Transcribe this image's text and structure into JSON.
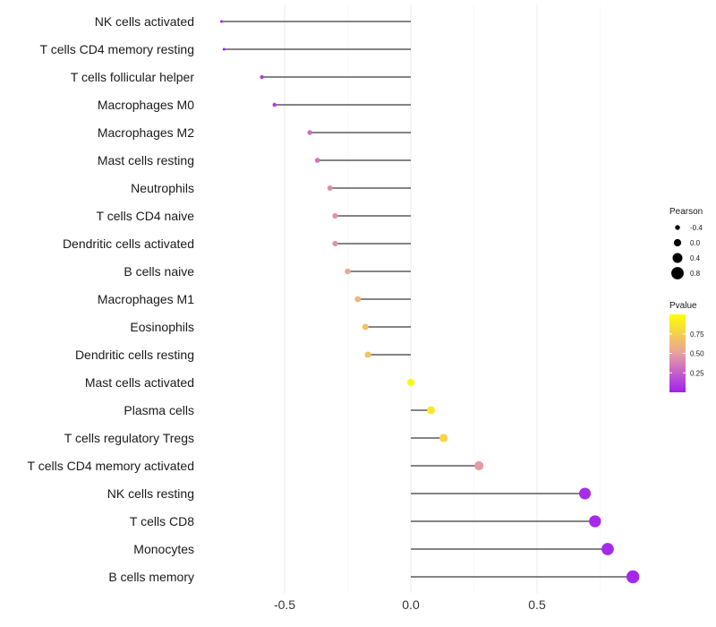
{
  "chart_data": {
    "type": "lollipop",
    "title": "",
    "xlabel": "",
    "ylabel": "",
    "xlim": [
      -0.75,
      0.88
    ],
    "xticks": [
      -0.5,
      0.0,
      0.5
    ],
    "xtick_labels": [
      "-0.5",
      "0.0",
      "0.5"
    ],
    "categories": [
      "NK cells activated",
      "T cells CD4 memory resting",
      "T cells follicular helper",
      "Macrophages M0",
      "Macrophages M2",
      "Mast cells resting",
      "Neutrophils",
      "T cells CD4 naive",
      "Dendritic cells activated",
      "B cells naive",
      "Macrophages M1",
      "Eosinophils",
      "Dendritic cells resting",
      "Mast cells activated",
      "Plasma cells",
      "T cells regulatory  Tregs ",
      "T cells CD4 memory activated",
      "NK cells resting",
      "T cells CD8",
      "Monocytes",
      "B cells memory"
    ],
    "pearson": [
      -0.75,
      -0.74,
      -0.59,
      -0.54,
      -0.4,
      -0.37,
      -0.32,
      -0.3,
      -0.3,
      -0.25,
      -0.21,
      -0.18,
      -0.17,
      0.0,
      0.08,
      0.13,
      0.27,
      0.69,
      0.73,
      0.78,
      0.88
    ],
    "pvalue": [
      0.02,
      0.02,
      0.08,
      0.12,
      0.3,
      0.33,
      0.42,
      0.45,
      0.45,
      0.55,
      0.62,
      0.68,
      0.7,
      0.97,
      0.88,
      0.78,
      0.48,
      0.05,
      0.04,
      0.04,
      0.03
    ],
    "legend_size": {
      "title": "Pearson",
      "values": [
        -0.4,
        0.0,
        0.4,
        0.8
      ],
      "labels": [
        "-0.4",
        "0.0",
        "0.4",
        "0.8"
      ]
    },
    "legend_color": {
      "title": "Pvalue",
      "ticks": [
        0.25,
        0.5,
        0.75
      ],
      "labels": [
        "0.25",
        "0.50",
        "0.75"
      ],
      "range": [
        0.0,
        1.0
      ],
      "low_color": "#a020f0",
      "mid_color": "#e8a0a0",
      "high_color": "#ffff00"
    }
  }
}
